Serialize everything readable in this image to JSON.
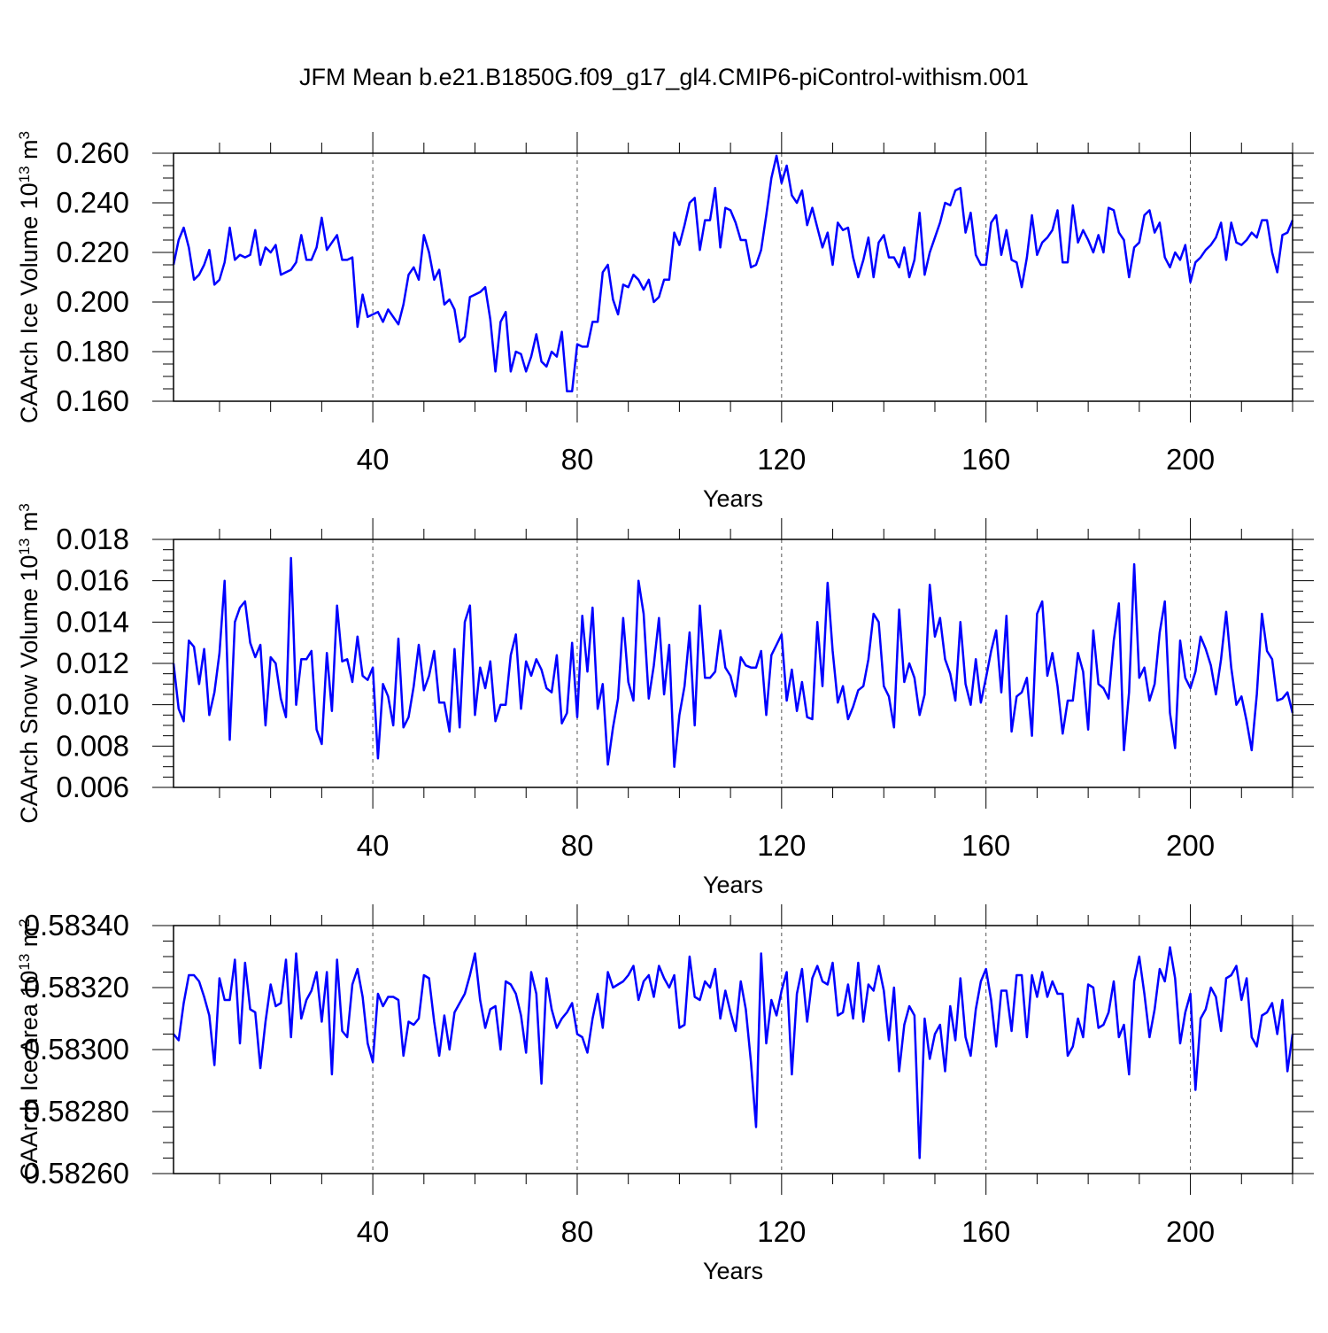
{
  "figure": {
    "title": "JFM Mean b.e21.B1850G.f09_g17_gl4.CMIP6-piControl-withism.001"
  },
  "chart_data": [
    {
      "type": "line",
      "title": "JFM Mean b.e21.B1850G.f09_g17_gl4.CMIP6-piControl-withism.001",
      "xlabel": "Years",
      "ylabel": "CAArch Ice Volume 10",
      "ylabel_sup": "13",
      "ylabel_unit": " m",
      "ylabel_unit_sup": "3",
      "x_start": 1,
      "xlim": [
        1,
        220
      ],
      "ylim": [
        0.16,
        0.26
      ],
      "yticks": [
        0.16,
        0.18,
        0.2,
        0.22,
        0.24,
        0.26
      ],
      "ytick_labels": [
        "0.160",
        "0.180",
        "0.200",
        "0.220",
        "0.240",
        "0.260"
      ],
      "xticks": [
        40,
        80,
        120,
        160,
        200
      ],
      "xtick_labels": [
        "40",
        "80",
        "120",
        "160",
        "200"
      ],
      "grid": "vertical dashed at major x ticks",
      "line_color": "#0000ff",
      "series": [
        {
          "name": "CAArch Ice Volume",
          "values": [
            0.215,
            0.225,
            0.23,
            0.222,
            0.209,
            0.211,
            0.215,
            0.221,
            0.207,
            0.209,
            0.216,
            0.23,
            0.217,
            0.219,
            0.218,
            0.219,
            0.229,
            0.215,
            0.222,
            0.22,
            0.223,
            0.211,
            0.212,
            0.213,
            0.216,
            0.227,
            0.217,
            0.217,
            0.222,
            0.234,
            0.221,
            0.224,
            0.227,
            0.217,
            0.217,
            0.218,
            0.19,
            0.203,
            0.194,
            0.195,
            0.196,
            0.192,
            0.197,
            0.194,
            0.191,
            0.199,
            0.211,
            0.214,
            0.209,
            0.227,
            0.22,
            0.209,
            0.213,
            0.199,
            0.201,
            0.197,
            0.184,
            0.186,
            0.202,
            0.203,
            0.204,
            0.206,
            0.193,
            0.172,
            0.192,
            0.196,
            0.172,
            0.18,
            0.179,
            0.172,
            0.178,
            0.187,
            0.176,
            0.174,
            0.18,
            0.178,
            0.188,
            0.164,
            0.164,
            0.183,
            0.182,
            0.182,
            0.192,
            0.192,
            0.212,
            0.215,
            0.201,
            0.195,
            0.207,
            0.206,
            0.211,
            0.209,
            0.205,
            0.209,
            0.2,
            0.202,
            0.209,
            0.209,
            0.228,
            0.223,
            0.231,
            0.24,
            0.242,
            0.221,
            0.233,
            0.233,
            0.246,
            0.222,
            0.238,
            0.237,
            0.232,
            0.225,
            0.225,
            0.214,
            0.215,
            0.221,
            0.235,
            0.25,
            0.259,
            0.248,
            0.255,
            0.243,
            0.24,
            0.245,
            0.231,
            0.238,
            0.23,
            0.222,
            0.228,
            0.215,
            0.232,
            0.229,
            0.23,
            0.218,
            0.21,
            0.217,
            0.226,
            0.21,
            0.224,
            0.227,
            0.218,
            0.218,
            0.214,
            0.222,
            0.21,
            0.217,
            0.236,
            0.211,
            0.22,
            0.226,
            0.232,
            0.24,
            0.239,
            0.245,
            0.246,
            0.228,
            0.236,
            0.219,
            0.215,
            0.215,
            0.232,
            0.235,
            0.219,
            0.229,
            0.217,
            0.216,
            0.206,
            0.218,
            0.235,
            0.219,
            0.224,
            0.226,
            0.229,
            0.237,
            0.216,
            0.216,
            0.239,
            0.224,
            0.229,
            0.225,
            0.22,
            0.227,
            0.22,
            0.238,
            0.237,
            0.228,
            0.225,
            0.21,
            0.222,
            0.224,
            0.235,
            0.237,
            0.228,
            0.232,
            0.218,
            0.214,
            0.22,
            0.217,
            0.223,
            0.208,
            0.216,
            0.218,
            0.221,
            0.223,
            0.226,
            0.232,
            0.217,
            0.232,
            0.224,
            0.223,
            0.225,
            0.228,
            0.226,
            0.233,
            0.233,
            0.22,
            0.212,
            0.227,
            0.228,
            0.233
          ]
        }
      ]
    },
    {
      "type": "line",
      "xlabel": "Years",
      "ylabel": "CAArch Snow Volume 10",
      "ylabel_sup": "13",
      "ylabel_unit": " m",
      "ylabel_unit_sup": "3",
      "x_start": 1,
      "xlim": [
        1,
        220
      ],
      "ylim": [
        0.006,
        0.018
      ],
      "yticks": [
        0.006,
        0.008,
        0.01,
        0.012,
        0.014,
        0.016,
        0.018
      ],
      "ytick_labels": [
        "0.006",
        "0.008",
        "0.010",
        "0.012",
        "0.014",
        "0.016",
        "0.018"
      ],
      "xticks": [
        40,
        80,
        120,
        160,
        200
      ],
      "xtick_labels": [
        "40",
        "80",
        "120",
        "160",
        "200"
      ],
      "grid": "vertical dashed at major x ticks",
      "line_color": "#0000ff",
      "series": [
        {
          "name": "CAArch Snow Volume",
          "values": [
            0.012,
            0.0098,
            0.0092,
            0.0131,
            0.0128,
            0.011,
            0.0127,
            0.0095,
            0.0106,
            0.0125,
            0.016,
            0.0083,
            0.014,
            0.0147,
            0.015,
            0.013,
            0.0123,
            0.0129,
            0.009,
            0.0123,
            0.012,
            0.0103,
            0.0094,
            0.0171,
            0.01,
            0.0122,
            0.0122,
            0.0126,
            0.0088,
            0.0081,
            0.0125,
            0.0097,
            0.0148,
            0.0121,
            0.0122,
            0.0111,
            0.0133,
            0.0114,
            0.0112,
            0.0118,
            0.0074,
            0.011,
            0.0104,
            0.009,
            0.0132,
            0.0089,
            0.0094,
            0.0109,
            0.0129,
            0.0107,
            0.0114,
            0.0126,
            0.0101,
            0.0101,
            0.0087,
            0.0127,
            0.0089,
            0.014,
            0.0148,
            0.0095,
            0.0118,
            0.0108,
            0.0121,
            0.0092,
            0.01,
            0.01,
            0.0124,
            0.0134,
            0.0098,
            0.0121,
            0.0114,
            0.0122,
            0.0117,
            0.0108,
            0.0106,
            0.0124,
            0.0091,
            0.0096,
            0.013,
            0.0094,
            0.0143,
            0.0116,
            0.0147,
            0.0098,
            0.011,
            0.0071,
            0.0089,
            0.0103,
            0.0142,
            0.0111,
            0.0102,
            0.016,
            0.0144,
            0.0103,
            0.0119,
            0.0142,
            0.0105,
            0.0129,
            0.007,
            0.0095,
            0.0109,
            0.0135,
            0.009,
            0.0148,
            0.0113,
            0.0113,
            0.0116,
            0.0136,
            0.0118,
            0.0114,
            0.0104,
            0.0123,
            0.0119,
            0.0118,
            0.0118,
            0.0126,
            0.0095,
            0.0124,
            0.0129,
            0.0134,
            0.0102,
            0.0117,
            0.0097,
            0.0111,
            0.0094,
            0.0093,
            0.014,
            0.0109,
            0.0159,
            0.0126,
            0.0101,
            0.0109,
            0.0093,
            0.0099,
            0.0107,
            0.0109,
            0.0122,
            0.0144,
            0.014,
            0.0109,
            0.0104,
            0.0089,
            0.0146,
            0.0111,
            0.012,
            0.0113,
            0.0095,
            0.0105,
            0.0158,
            0.0133,
            0.0142,
            0.0122,
            0.0115,
            0.0102,
            0.014,
            0.011,
            0.01,
            0.0122,
            0.0101,
            0.0113,
            0.0126,
            0.0136,
            0.0106,
            0.0143,
            0.0087,
            0.0104,
            0.0106,
            0.0113,
            0.0085,
            0.0144,
            0.015,
            0.0114,
            0.0125,
            0.0109,
            0.0086,
            0.0102,
            0.0102,
            0.0125,
            0.0116,
            0.0088,
            0.0136,
            0.011,
            0.0108,
            0.0103,
            0.0131,
            0.0149,
            0.0078,
            0.0106,
            0.0168,
            0.0113,
            0.0118,
            0.0102,
            0.011,
            0.0135,
            0.015,
            0.0096,
            0.0079,
            0.0131,
            0.0113,
            0.0108,
            0.0116,
            0.0133,
            0.0127,
            0.0119,
            0.0105,
            0.0122,
            0.0145,
            0.0118,
            0.01,
            0.0104,
            0.0092,
            0.0078,
            0.0105,
            0.0144,
            0.0126,
            0.0122,
            0.0102,
            0.0103,
            0.0106,
            0.0096
          ]
        }
      ]
    },
    {
      "type": "line",
      "xlabel": "Years",
      "ylabel": "CAArch Ice Area 10",
      "ylabel_sup": "13",
      "ylabel_unit": " m",
      "ylabel_unit_sup": "2",
      "x_start": 1,
      "xlim": [
        1,
        220
      ],
      "ylim": [
        0.5826,
        0.5834
      ],
      "yticks": [
        0.5826,
        0.5828,
        0.583,
        0.5832,
        0.5834
      ],
      "ytick_labels": [
        "0.58260",
        "0.58280",
        "0.58300",
        "0.58320",
        "0.58340"
      ],
      "xticks": [
        40,
        80,
        120,
        160,
        200
      ],
      "xtick_labels": [
        "40",
        "80",
        "120",
        "160",
        "200"
      ],
      "grid": "vertical dashed at major x ticks",
      "line_color": "#0000ff",
      "series": [
        {
          "name": "CAArch Ice Area",
          "values": [
            0.58305,
            0.58303,
            0.58315,
            0.58324,
            0.58324,
            0.58322,
            0.58317,
            0.58311,
            0.58295,
            0.58323,
            0.58316,
            0.58316,
            0.58329,
            0.58302,
            0.58328,
            0.58313,
            0.58312,
            0.58294,
            0.58309,
            0.58321,
            0.58314,
            0.58315,
            0.58329,
            0.58304,
            0.58331,
            0.5831,
            0.58316,
            0.58319,
            0.58325,
            0.58309,
            0.58325,
            0.58292,
            0.58329,
            0.58306,
            0.58304,
            0.58321,
            0.58326,
            0.58317,
            0.58302,
            0.58296,
            0.58318,
            0.58314,
            0.58317,
            0.58317,
            0.58316,
            0.58298,
            0.58309,
            0.58308,
            0.5831,
            0.58324,
            0.58323,
            0.58309,
            0.58298,
            0.58311,
            0.583,
            0.58312,
            0.58315,
            0.58318,
            0.58324,
            0.58331,
            0.58316,
            0.58307,
            0.58313,
            0.58314,
            0.583,
            0.58322,
            0.58321,
            0.58318,
            0.58311,
            0.58299,
            0.58325,
            0.58318,
            0.58289,
            0.58323,
            0.58313,
            0.58307,
            0.5831,
            0.58312,
            0.58315,
            0.58305,
            0.58304,
            0.58299,
            0.5831,
            0.58318,
            0.58307,
            0.58325,
            0.5832,
            0.58321,
            0.58322,
            0.58324,
            0.58327,
            0.58316,
            0.58322,
            0.58324,
            0.58317,
            0.58327,
            0.58323,
            0.5832,
            0.58324,
            0.58307,
            0.58308,
            0.5833,
            0.58317,
            0.58316,
            0.58322,
            0.5832,
            0.58326,
            0.5831,
            0.58319,
            0.58312,
            0.58306,
            0.58322,
            0.58313,
            0.58296,
            0.58275,
            0.58331,
            0.58302,
            0.58316,
            0.58311,
            0.58319,
            0.58325,
            0.58292,
            0.58318,
            0.58326,
            0.58309,
            0.58323,
            0.58327,
            0.58322,
            0.58321,
            0.58328,
            0.58311,
            0.58312,
            0.58321,
            0.5831,
            0.58328,
            0.58309,
            0.58321,
            0.58319,
            0.58327,
            0.58319,
            0.58303,
            0.5832,
            0.58293,
            0.58308,
            0.58314,
            0.58311,
            0.58265,
            0.5831,
            0.58297,
            0.58305,
            0.58308,
            0.58293,
            0.58314,
            0.58303,
            0.58323,
            0.58304,
            0.58298,
            0.58313,
            0.58322,
            0.58326,
            0.58316,
            0.58301,
            0.58319,
            0.58319,
            0.58306,
            0.58324,
            0.58324,
            0.58304,
            0.58324,
            0.58317,
            0.58325,
            0.58317,
            0.58322,
            0.58318,
            0.58318,
            0.58298,
            0.58301,
            0.5831,
            0.58304,
            0.58321,
            0.5832,
            0.58307,
            0.58308,
            0.58312,
            0.58322,
            0.58304,
            0.58308,
            0.58292,
            0.58322,
            0.5833,
            0.58318,
            0.58304,
            0.58313,
            0.58326,
            0.58322,
            0.58333,
            0.58323,
            0.58302,
            0.58312,
            0.58318,
            0.58287,
            0.5831,
            0.58313,
            0.5832,
            0.58317,
            0.58306,
            0.58323,
            0.58324,
            0.58327,
            0.58316,
            0.58323,
            0.58304,
            0.58301,
            0.58311,
            0.58312,
            0.58315,
            0.58305,
            0.58316,
            0.58293,
            0.58305
          ]
        }
      ]
    }
  ]
}
